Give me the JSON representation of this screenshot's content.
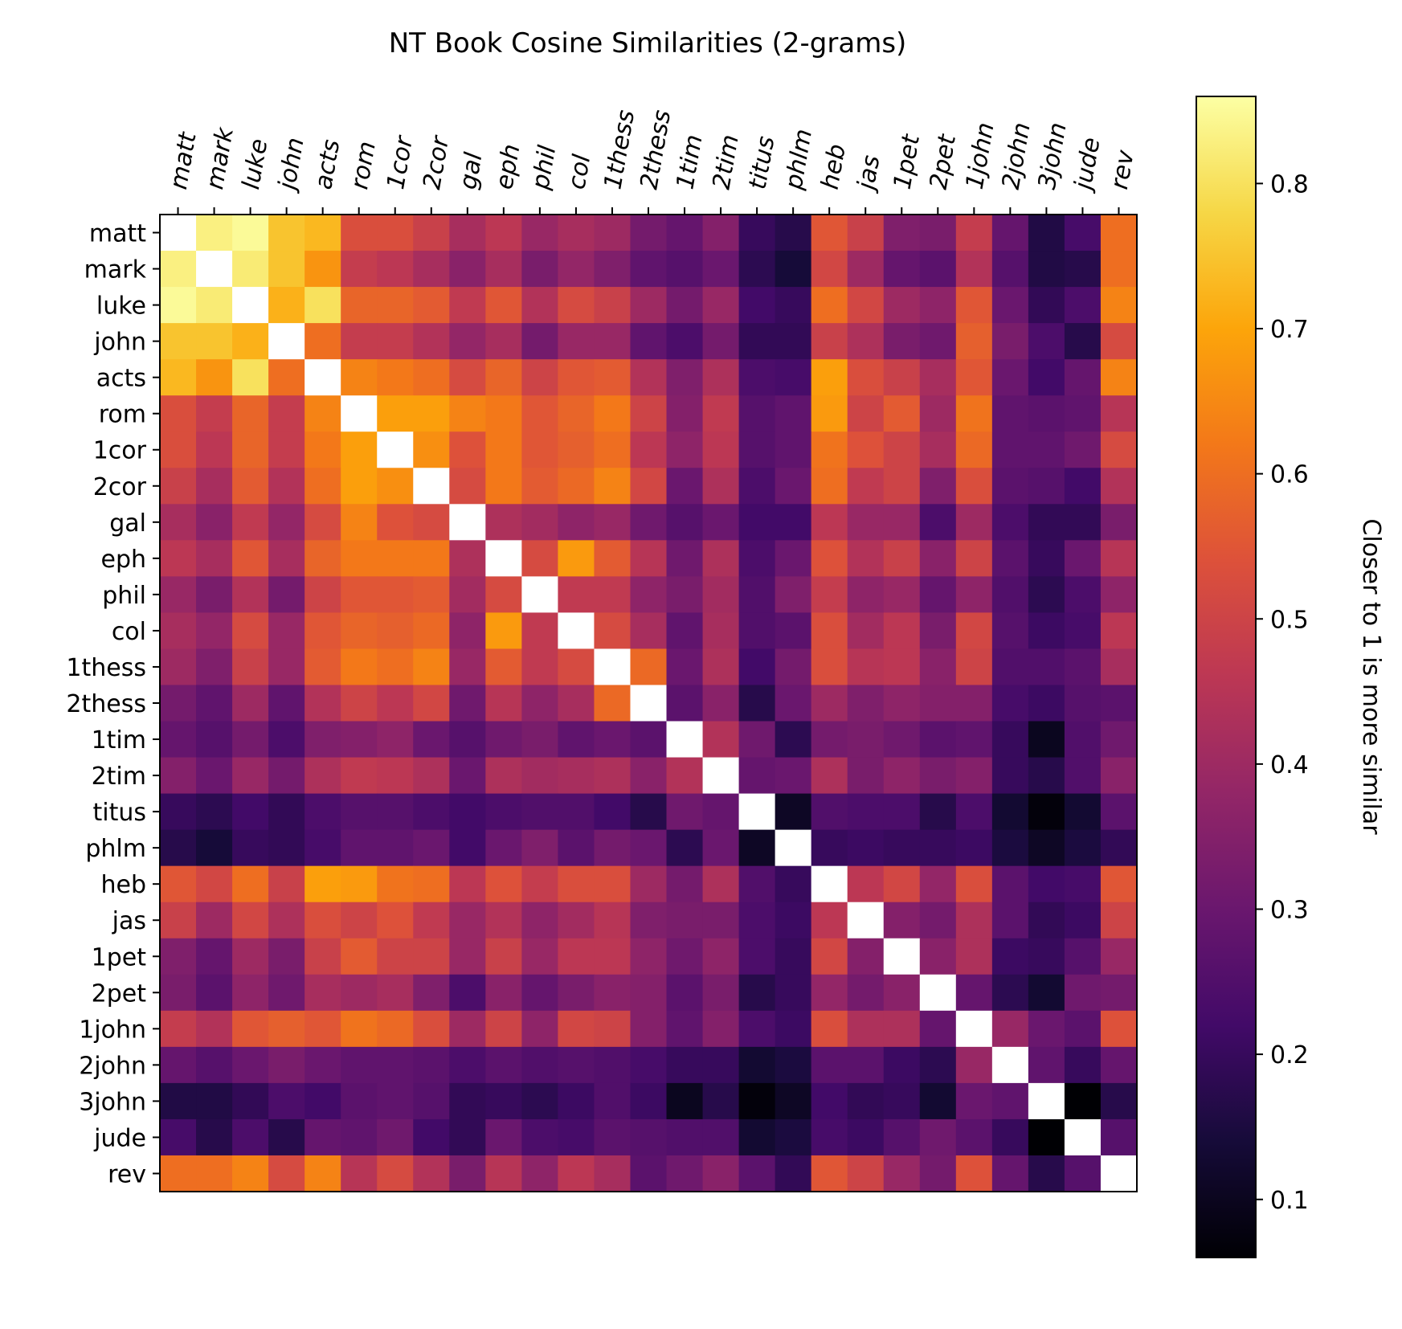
{
  "chart_data": {
    "type": "heatmap",
    "title": "NT Book Cosine Similarities (2-grams)",
    "xlabel": "",
    "ylabel": "",
    "labels": [
      "matt",
      "mark",
      "luke",
      "john",
      "acts",
      "rom",
      "1cor",
      "2cor",
      "gal",
      "eph",
      "phil",
      "col",
      "1thess",
      "2thess",
      "1tim",
      "2tim",
      "titus",
      "phlm",
      "heb",
      "jas",
      "1pet",
      "2pet",
      "1john",
      "2john",
      "3john",
      "jude",
      "rev"
    ],
    "values": [
      [
        1.0,
        0.83,
        0.85,
        0.75,
        0.73,
        0.53,
        0.53,
        0.49,
        0.42,
        0.46,
        0.39,
        0.42,
        0.4,
        0.32,
        0.29,
        0.35,
        0.2,
        0.17,
        0.55,
        0.49,
        0.34,
        0.33,
        0.48,
        0.29,
        0.16,
        0.23,
        0.6
      ],
      [
        0.83,
        1.0,
        0.82,
        0.75,
        0.67,
        0.48,
        0.46,
        0.42,
        0.36,
        0.42,
        0.33,
        0.38,
        0.34,
        0.28,
        0.26,
        0.3,
        0.18,
        0.14,
        0.51,
        0.4,
        0.29,
        0.27,
        0.44,
        0.26,
        0.16,
        0.17,
        0.6
      ],
      [
        0.85,
        0.82,
        1.0,
        0.72,
        0.8,
        0.58,
        0.58,
        0.56,
        0.47,
        0.55,
        0.44,
        0.52,
        0.49,
        0.4,
        0.32,
        0.39,
        0.22,
        0.2,
        0.6,
        0.51,
        0.4,
        0.37,
        0.55,
        0.3,
        0.19,
        0.24,
        0.64
      ],
      [
        0.75,
        0.75,
        0.72,
        1.0,
        0.6,
        0.48,
        0.48,
        0.44,
        0.38,
        0.42,
        0.32,
        0.39,
        0.39,
        0.28,
        0.24,
        0.32,
        0.19,
        0.19,
        0.49,
        0.43,
        0.33,
        0.31,
        0.57,
        0.33,
        0.24,
        0.17,
        0.52
      ],
      [
        0.73,
        0.67,
        0.8,
        0.6,
        1.0,
        0.64,
        0.62,
        0.6,
        0.52,
        0.58,
        0.5,
        0.55,
        0.56,
        0.44,
        0.34,
        0.43,
        0.24,
        0.23,
        0.69,
        0.53,
        0.49,
        0.42,
        0.55,
        0.3,
        0.22,
        0.29,
        0.64
      ],
      [
        0.53,
        0.48,
        0.58,
        0.48,
        0.64,
        1.0,
        0.69,
        0.69,
        0.64,
        0.62,
        0.55,
        0.58,
        0.62,
        0.5,
        0.35,
        0.47,
        0.26,
        0.28,
        0.68,
        0.5,
        0.56,
        0.4,
        0.61,
        0.28,
        0.27,
        0.28,
        0.45
      ],
      [
        0.53,
        0.46,
        0.58,
        0.48,
        0.62,
        0.69,
        1.0,
        0.66,
        0.54,
        0.62,
        0.55,
        0.57,
        0.6,
        0.46,
        0.37,
        0.46,
        0.26,
        0.28,
        0.61,
        0.54,
        0.5,
        0.42,
        0.59,
        0.28,
        0.28,
        0.31,
        0.52
      ],
      [
        0.49,
        0.42,
        0.56,
        0.44,
        0.6,
        0.69,
        0.66,
        1.0,
        0.52,
        0.62,
        0.56,
        0.59,
        0.64,
        0.51,
        0.3,
        0.43,
        0.24,
        0.3,
        0.6,
        0.47,
        0.5,
        0.34,
        0.53,
        0.27,
        0.26,
        0.22,
        0.44
      ],
      [
        0.42,
        0.36,
        0.47,
        0.38,
        0.52,
        0.64,
        0.54,
        0.52,
        1.0,
        0.43,
        0.41,
        0.37,
        0.39,
        0.31,
        0.26,
        0.3,
        0.22,
        0.22,
        0.46,
        0.39,
        0.39,
        0.24,
        0.4,
        0.24,
        0.19,
        0.19,
        0.33
      ],
      [
        0.46,
        0.42,
        0.55,
        0.42,
        0.58,
        0.62,
        0.62,
        0.62,
        0.43,
        1.0,
        0.52,
        0.68,
        0.56,
        0.45,
        0.31,
        0.43,
        0.24,
        0.3,
        0.54,
        0.44,
        0.49,
        0.36,
        0.5,
        0.27,
        0.2,
        0.3,
        0.45
      ],
      [
        0.39,
        0.33,
        0.44,
        0.32,
        0.5,
        0.55,
        0.55,
        0.56,
        0.41,
        0.52,
        1.0,
        0.47,
        0.47,
        0.37,
        0.33,
        0.41,
        0.25,
        0.34,
        0.48,
        0.37,
        0.39,
        0.29,
        0.37,
        0.25,
        0.18,
        0.24,
        0.37
      ],
      [
        0.42,
        0.38,
        0.52,
        0.39,
        0.55,
        0.58,
        0.57,
        0.59,
        0.37,
        0.68,
        0.47,
        1.0,
        0.52,
        0.42,
        0.28,
        0.42,
        0.25,
        0.27,
        0.53,
        0.41,
        0.46,
        0.33,
        0.51,
        0.26,
        0.21,
        0.23,
        0.46
      ],
      [
        0.4,
        0.34,
        0.49,
        0.39,
        0.56,
        0.62,
        0.6,
        0.64,
        0.39,
        0.56,
        0.47,
        0.52,
        1.0,
        0.59,
        0.3,
        0.43,
        0.22,
        0.32,
        0.53,
        0.45,
        0.46,
        0.36,
        0.5,
        0.25,
        0.25,
        0.27,
        0.42
      ],
      [
        0.32,
        0.28,
        0.4,
        0.28,
        0.44,
        0.5,
        0.46,
        0.51,
        0.31,
        0.45,
        0.37,
        0.42,
        0.59,
        1.0,
        0.27,
        0.36,
        0.17,
        0.3,
        0.4,
        0.34,
        0.37,
        0.35,
        0.35,
        0.23,
        0.21,
        0.26,
        0.27
      ],
      [
        0.29,
        0.26,
        0.32,
        0.24,
        0.34,
        0.35,
        0.37,
        0.3,
        0.26,
        0.31,
        0.33,
        0.28,
        0.3,
        0.27,
        1.0,
        0.44,
        0.31,
        0.18,
        0.32,
        0.33,
        0.31,
        0.27,
        0.28,
        0.2,
        0.1,
        0.25,
        0.31
      ],
      [
        0.35,
        0.3,
        0.39,
        0.32,
        0.43,
        0.47,
        0.46,
        0.43,
        0.3,
        0.43,
        0.41,
        0.42,
        0.43,
        0.36,
        0.44,
        1.0,
        0.29,
        0.3,
        0.43,
        0.33,
        0.37,
        0.33,
        0.35,
        0.2,
        0.17,
        0.25,
        0.36
      ],
      [
        0.2,
        0.18,
        0.22,
        0.19,
        0.24,
        0.26,
        0.26,
        0.24,
        0.22,
        0.24,
        0.25,
        0.25,
        0.22,
        0.17,
        0.31,
        0.29,
        1.0,
        0.11,
        0.25,
        0.24,
        0.24,
        0.17,
        0.24,
        0.13,
        0.07,
        0.13,
        0.27
      ],
      [
        0.17,
        0.14,
        0.2,
        0.19,
        0.23,
        0.28,
        0.28,
        0.3,
        0.22,
        0.3,
        0.34,
        0.27,
        0.32,
        0.3,
        0.18,
        0.3,
        0.11,
        1.0,
        0.2,
        0.21,
        0.2,
        0.2,
        0.21,
        0.15,
        0.11,
        0.15,
        0.19
      ],
      [
        0.55,
        0.51,
        0.6,
        0.49,
        0.69,
        0.68,
        0.61,
        0.6,
        0.46,
        0.54,
        0.48,
        0.53,
        0.53,
        0.4,
        0.32,
        0.43,
        0.25,
        0.2,
        1.0,
        0.46,
        0.51,
        0.38,
        0.53,
        0.27,
        0.22,
        0.23,
        0.55
      ],
      [
        0.49,
        0.4,
        0.51,
        0.43,
        0.53,
        0.5,
        0.54,
        0.47,
        0.39,
        0.44,
        0.37,
        0.41,
        0.45,
        0.34,
        0.33,
        0.33,
        0.24,
        0.21,
        0.46,
        1.0,
        0.35,
        0.32,
        0.43,
        0.27,
        0.19,
        0.21,
        0.5
      ],
      [
        0.34,
        0.29,
        0.4,
        0.33,
        0.49,
        0.56,
        0.5,
        0.5,
        0.39,
        0.49,
        0.39,
        0.46,
        0.46,
        0.37,
        0.31,
        0.37,
        0.24,
        0.2,
        0.51,
        0.35,
        1.0,
        0.36,
        0.43,
        0.21,
        0.2,
        0.26,
        0.39
      ],
      [
        0.33,
        0.27,
        0.37,
        0.31,
        0.42,
        0.4,
        0.42,
        0.34,
        0.24,
        0.36,
        0.29,
        0.33,
        0.36,
        0.35,
        0.27,
        0.33,
        0.17,
        0.2,
        0.38,
        0.32,
        0.36,
        1.0,
        0.29,
        0.18,
        0.13,
        0.31,
        0.32
      ],
      [
        0.48,
        0.44,
        0.55,
        0.57,
        0.55,
        0.61,
        0.59,
        0.53,
        0.4,
        0.5,
        0.37,
        0.51,
        0.5,
        0.35,
        0.28,
        0.35,
        0.24,
        0.21,
        0.53,
        0.43,
        0.43,
        0.29,
        1.0,
        0.39,
        0.3,
        0.27,
        0.54
      ],
      [
        0.29,
        0.26,
        0.3,
        0.33,
        0.3,
        0.28,
        0.28,
        0.27,
        0.24,
        0.27,
        0.25,
        0.26,
        0.25,
        0.23,
        0.2,
        0.2,
        0.13,
        0.15,
        0.27,
        0.27,
        0.21,
        0.18,
        0.39,
        1.0,
        0.28,
        0.2,
        0.29
      ],
      [
        0.16,
        0.16,
        0.19,
        0.24,
        0.22,
        0.27,
        0.28,
        0.26,
        0.19,
        0.2,
        0.18,
        0.21,
        0.25,
        0.21,
        0.1,
        0.17,
        0.07,
        0.11,
        0.22,
        0.19,
        0.2,
        0.13,
        0.3,
        0.28,
        1.0,
        0.06,
        0.17
      ],
      [
        0.23,
        0.17,
        0.24,
        0.17,
        0.29,
        0.28,
        0.31,
        0.22,
        0.19,
        0.3,
        0.24,
        0.23,
        0.27,
        0.26,
        0.25,
        0.25,
        0.13,
        0.15,
        0.23,
        0.21,
        0.26,
        0.31,
        0.27,
        0.2,
        0.06,
        1.0,
        0.26
      ],
      [
        0.6,
        0.6,
        0.64,
        0.52,
        0.64,
        0.45,
        0.52,
        0.44,
        0.33,
        0.45,
        0.37,
        0.46,
        0.42,
        0.27,
        0.31,
        0.36,
        0.27,
        0.19,
        0.55,
        0.5,
        0.39,
        0.32,
        0.54,
        0.29,
        0.17,
        0.26,
        1.0
      ]
    ],
    "colorbar": {
      "label": "Closer to 1 is more similar",
      "vmin": 0.06,
      "vmax": 0.86,
      "ticks": [
        0.1,
        0.2,
        0.3,
        0.4,
        0.5,
        0.6,
        0.7,
        0.8
      ],
      "tick_labels": [
        "0.1",
        "0.2",
        "0.3",
        "0.4",
        "0.5",
        "0.6",
        "0.7",
        "0.8"
      ]
    },
    "colormap": "inferno",
    "diagonal_color": "#ffffff"
  }
}
